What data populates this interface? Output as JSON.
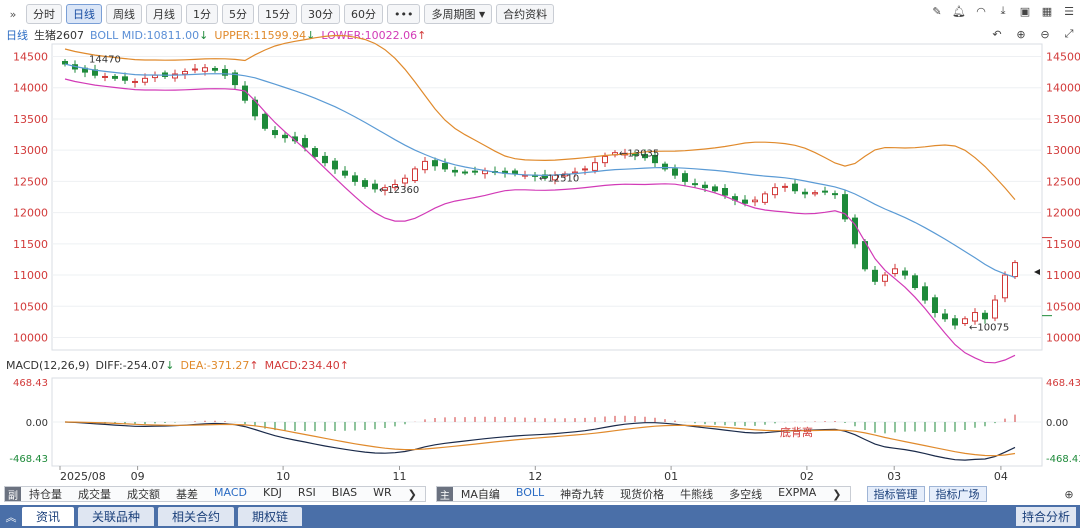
{
  "toolbar": {
    "collapse_glyph": "»",
    "buttons": [
      "分时",
      "日线",
      "周线",
      "月线",
      "1分",
      "5分",
      "15分",
      "30分",
      "60分"
    ],
    "active": "日线",
    "more": "•••",
    "multi_period": "多周期图",
    "contract_info": "合约资料",
    "right_icons": [
      "pencil-icon",
      "bell-icon",
      "snapshot-icon",
      "download-icon",
      "window-icon",
      "grid-icon",
      "menu-icon"
    ]
  },
  "header": {
    "period": "日线",
    "symbol": "生猪2607",
    "boll_mid": "BOLL MID:10811.00",
    "boll_upper": "UPPER:11599.94",
    "boll_lower": "LOWER:10022.06"
  },
  "macd_header": {
    "name": "MACD(12,26,9)",
    "diff": "DIFF:-254.07",
    "dea": "DEA:-371.27",
    "macd": "MACD:234.40"
  },
  "chart_data": {
    "type": "candlestick",
    "yaxis_price": {
      "ticks": [
        10000,
        10500,
        11000,
        11500,
        12000,
        12500,
        13000,
        13500,
        14000,
        14500
      ],
      "range": [
        9800,
        14700
      ]
    },
    "yaxis_macd": {
      "ticks": [
        "468.43",
        "0.00",
        "-468.43"
      ]
    },
    "x_labels": [
      "2025/08",
      "09",
      "10",
      "11",
      "12",
      "01",
      "02",
      "03",
      "04"
    ],
    "annotations": [
      "14470",
      "←12360",
      "←12510",
      "←13035",
      "←10075"
    ],
    "watermark": "底背离",
    "colors": {
      "up": "#d23a3a",
      "down": "#1e8a3a",
      "mid": "#5b9bd5",
      "upper": "#e08a2c",
      "lower": "#d23ab7",
      "diff": "#1a2a4a",
      "dea": "#e08a2c"
    },
    "closes": [
      14380,
      14300,
      14250,
      14200,
      14180,
      14150,
      14120,
      14100,
      14150,
      14200,
      14180,
      14220,
      14260,
      14300,
      14320,
      14280,
      14200,
      14050,
      13800,
      13550,
      13350,
      13250,
      13200,
      13150,
      13050,
      12900,
      12800,
      12700,
      12600,
      12500,
      12420,
      12380,
      12400,
      12450,
      12550,
      12700,
      12820,
      12750,
      12700,
      12650,
      12640,
      12660,
      12670,
      12650,
      12630,
      12620,
      12600,
      12580,
      12560,
      12600,
      12620,
      12650,
      12700,
      12800,
      12900,
      12960,
      12950,
      12920,
      12880,
      12800,
      12700,
      12600,
      12500,
      12450,
      12400,
      12350,
      12280,
      12200,
      12150,
      12200,
      12300,
      12400,
      12420,
      12350,
      12300,
      12320,
      12340,
      12300,
      11900,
      11500,
      11100,
      10900,
      11000,
      11100,
      11000,
      10800,
      10600,
      10400,
      10300,
      10200,
      10300,
      10400,
      10300,
      10600,
      11000,
      11200
    ]
  },
  "indicator_bar": {
    "left_label": "副",
    "left_items": [
      "持仓量",
      "成交量",
      "成交额",
      "基差",
      "MACD",
      "KDJ",
      "RSI",
      "BIAS",
      "WR"
    ],
    "left_active": "MACD",
    "right_label": "主",
    "right_items": [
      "MA自编",
      "BOLL",
      "神奇九转",
      "现货价格",
      "牛熊线",
      "多空线",
      "EXPMA"
    ],
    "right_active": "BOLL",
    "arrow": "❯",
    "manage": "指标管理",
    "plaza": "指标广场"
  },
  "bottom_tabs": {
    "toggle": "︽",
    "tabs": [
      "资讯",
      "关联品种",
      "相关合约",
      "期权链"
    ],
    "active": "资讯",
    "right": "持合分析"
  }
}
